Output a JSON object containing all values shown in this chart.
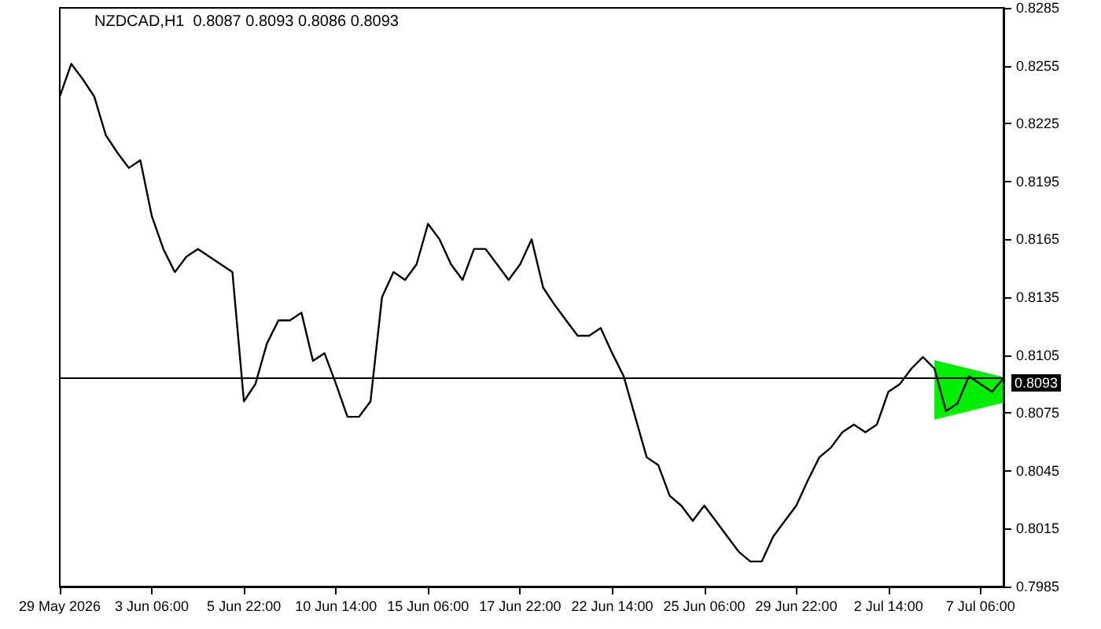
{
  "chart_data": {
    "type": "line",
    "title": "NZDCAD,H1  0.8087 0.8093 0.8086 0.8093",
    "categories": [
      "29 May 2026",
      null,
      null,
      null,
      null,
      null,
      null,
      null,
      "3 Jun 06:00",
      null,
      null,
      null,
      null,
      null,
      null,
      null,
      "5 Jun 22:00",
      null,
      null,
      null,
      null,
      null,
      null,
      null,
      "10 Jun 14:00",
      null,
      null,
      null,
      null,
      null,
      null,
      null,
      "15 Jun 06:00",
      null,
      null,
      null,
      null,
      null,
      null,
      null,
      "17 Jun 22:00",
      null,
      null,
      null,
      null,
      null,
      null,
      null,
      "22 Jun 14:00",
      null,
      null,
      null,
      null,
      null,
      null,
      null,
      "25 Jun 06:00",
      null,
      null,
      null,
      null,
      null,
      null,
      null,
      "29 Jun 22:00",
      null,
      null,
      null,
      null,
      null,
      null,
      null,
      "2 Jul 14:00",
      null,
      null,
      null,
      null,
      null,
      null,
      null,
      "7 Jul 06:00",
      null,
      null
    ],
    "series": [
      {
        "color": "#000000",
        "values": [
          0.8239,
          0.8256,
          0.8248,
          0.8239,
          0.8219,
          0.821,
          0.8202,
          0.8206,
          0.8177,
          0.816,
          0.8148,
          0.8156,
          0.816,
          0.8156,
          0.8152,
          0.8148,
          0.8081,
          0.809,
          0.8111,
          0.8123,
          0.8123,
          0.8127,
          0.8102,
          0.8106,
          0.809,
          0.8073,
          0.8073,
          0.8081,
          0.8135,
          0.8148,
          0.8144,
          0.8152,
          0.8173,
          0.8165,
          0.8152,
          0.8144,
          0.816,
          0.816,
          0.8152,
          0.8144,
          0.8152,
          0.8165,
          0.814,
          0.8131,
          0.8123,
          0.8115,
          0.8115,
          0.8119,
          0.8106,
          0.8094,
          0.8073,
          0.8052,
          0.8048,
          0.8032,
          0.8027,
          0.8019,
          0.8027,
          0.8019,
          0.8011,
          0.8003,
          0.7998,
          0.7998,
          0.8011,
          0.8019,
          0.8027,
          0.804,
          0.8052,
          0.8057,
          0.8065,
          0.8069,
          0.8065,
          0.8069,
          0.8086,
          0.809,
          0.8098,
          0.8104,
          0.8098,
          0.8076,
          0.808,
          0.8094,
          0.809,
          0.8086,
          0.8093
        ]
      }
    ],
    "ylim": [
      0.7985,
      0.8285
    ],
    "yticks": [
      0.7985,
      0.8015,
      0.8045,
      0.8075,
      0.8105,
      0.8135,
      0.8165,
      0.8195,
      0.8225,
      0.8255,
      0.8285
    ],
    "ref_lines": [
      {
        "axis": "y",
        "value": 0.8093,
        "label": "0.8093"
      }
    ],
    "grid": false
  }
}
